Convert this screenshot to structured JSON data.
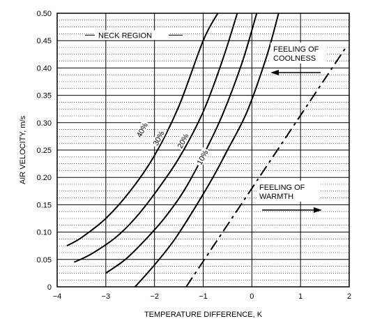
{
  "chart_data": {
    "type": "line",
    "xlabel": "TEMPERATURE DIFFERENCE, K",
    "ylabel": "AIR VELOCITY, m/s",
    "xlim": [
      -4,
      2
    ],
    "ylim": [
      0,
      0.5
    ],
    "x_ticks": [
      -4,
      -3,
      -2,
      -1,
      0,
      1,
      2
    ],
    "x_tick_labels": [
      "−4",
      "−3",
      "−2",
      "−1",
      "0",
      "1",
      "2"
    ],
    "y_ticks": [
      0,
      0.05,
      0.1,
      0.15,
      0.2,
      0.25,
      0.3,
      0.35,
      0.4,
      0.45,
      0.5
    ],
    "y_tick_labels": [
      "0",
      "0.05",
      "0.10",
      "0.15",
      "0.20",
      "0.25",
      "0.30",
      "0.35",
      "0.40",
      "0.45",
      "0.50"
    ],
    "grid": true,
    "series": [
      {
        "name": "40%",
        "style": "solid",
        "x": [
          -3.8,
          -3.5,
          -3.0,
          -2.5,
          -2.0,
          -1.5,
          -1.0,
          -0.7
        ],
        "y": [
          0.075,
          0.09,
          0.125,
          0.175,
          0.24,
          0.33,
          0.45,
          0.5
        ]
      },
      {
        "name": "30%",
        "style": "solid",
        "x": [
          -3.65,
          -3.3,
          -2.8,
          -2.4,
          -2.0,
          -1.5,
          -1.0,
          -0.6,
          -0.3
        ],
        "y": [
          0.045,
          0.06,
          0.09,
          0.125,
          0.17,
          0.235,
          0.32,
          0.415,
          0.5
        ]
      },
      {
        "name": "20%",
        "style": "solid",
        "x": [
          -3.0,
          -2.6,
          -2.2,
          -1.8,
          -1.4,
          -1.0,
          -0.6,
          -0.2,
          0.1
        ],
        "y": [
          0.025,
          0.05,
          0.085,
          0.125,
          0.175,
          0.24,
          0.315,
          0.41,
          0.5
        ]
      },
      {
        "name": "10%",
        "style": "solid",
        "x": [
          -2.4,
          -2.0,
          -1.6,
          -1.2,
          -0.8,
          -0.5,
          -0.1,
          0.3,
          0.55
        ],
        "y": [
          0.0,
          0.04,
          0.085,
          0.14,
          0.2,
          0.25,
          0.32,
          0.42,
          0.5
        ]
      },
      {
        "name": "",
        "style": "dashed",
        "x": [
          -1.35,
          1.95
        ],
        "y": [
          0.0,
          0.44
        ]
      }
    ],
    "annotations": {
      "neck_region": "NECK REGION",
      "coolness_line1": "FEELING OF",
      "coolness_line2": "COOLNESS",
      "warmth_line1": "FEELING OF",
      "warmth_line2": "WARMTH"
    }
  },
  "colors": {
    "ink": "#000000",
    "grid": "#000000",
    "background": "#ffffff"
  }
}
